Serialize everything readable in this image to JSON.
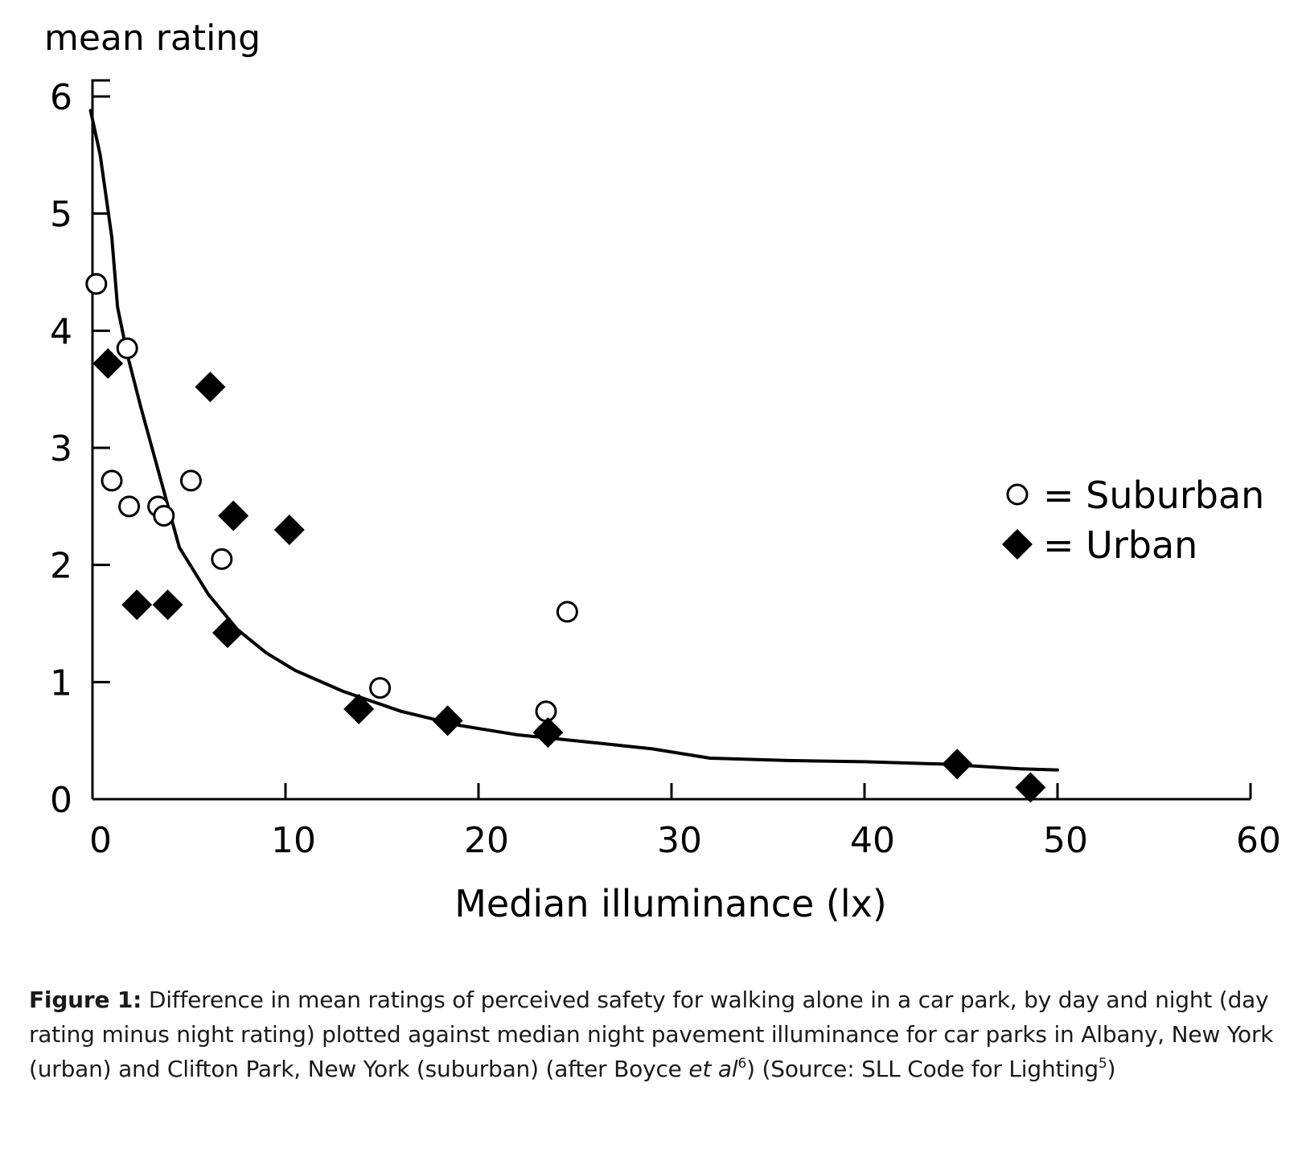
{
  "chart_data": {
    "type": "scatter",
    "ylabel": "mean rating",
    "xlabel": "Median illuminance (lx)",
    "xlim": [
      0,
      60
    ],
    "ylim": [
      0,
      6
    ],
    "xticks": [
      "0",
      "10",
      "20",
      "30",
      "40",
      "50",
      "60"
    ],
    "yticks": [
      "0",
      "1",
      "2",
      "3",
      "4",
      "5",
      "6"
    ],
    "grid": false,
    "legend_position": "right",
    "series": [
      {
        "name": "Suburban",
        "legend_label": "= Suburban",
        "marker": "open-circle",
        "points": [
          [
            0.2,
            4.4
          ],
          [
            1.8,
            3.85
          ],
          [
            1.0,
            2.72
          ],
          [
            1.9,
            2.5
          ],
          [
            3.4,
            2.5
          ],
          [
            3.7,
            2.42
          ],
          [
            5.1,
            2.72
          ],
          [
            6.7,
            2.05
          ],
          [
            24.6,
            1.6
          ],
          [
            14.9,
            0.95
          ],
          [
            23.5,
            0.75
          ]
        ]
      },
      {
        "name": "Urban",
        "legend_label": "= Urban",
        "marker": "filled-diamond",
        "points": [
          [
            0.8,
            3.72
          ],
          [
            6.1,
            3.52
          ],
          [
            7.3,
            2.42
          ],
          [
            10.2,
            2.3
          ],
          [
            2.3,
            1.66
          ],
          [
            3.9,
            1.66
          ],
          [
            7.0,
            1.42
          ],
          [
            13.8,
            0.77
          ],
          [
            18.4,
            0.67
          ],
          [
            23.6,
            0.57
          ],
          [
            44.8,
            0.3
          ],
          [
            48.6,
            0.1
          ]
        ]
      }
    ],
    "trend_curve": [
      [
        -0.1,
        5.88
      ],
      [
        0.4,
        5.5
      ],
      [
        1.0,
        4.8
      ],
      [
        1.3,
        4.2
      ],
      [
        1.8,
        3.8
      ],
      [
        2.5,
        3.35
      ],
      [
        3.5,
        2.75
      ],
      [
        4.5,
        2.15
      ],
      [
        6.0,
        1.75
      ],
      [
        7.5,
        1.45
      ],
      [
        9.0,
        1.25
      ],
      [
        10.5,
        1.1
      ],
      [
        13.0,
        0.92
      ],
      [
        16.0,
        0.75
      ],
      [
        19.0,
        0.63
      ],
      [
        22.0,
        0.55
      ],
      [
        25.0,
        0.5
      ],
      [
        29.0,
        0.43
      ],
      [
        32.0,
        0.35
      ],
      [
        36.0,
        0.33
      ],
      [
        40.0,
        0.32
      ],
      [
        44.0,
        0.3
      ],
      [
        48.0,
        0.26
      ],
      [
        50.0,
        0.25
      ]
    ]
  },
  "caption": {
    "label": "Figure 1:",
    "part1": " Difference in mean ratings of perceived safety for walking alone in a car park, by day and night (day rating minus night rating) plotted against median night pavement illuminance for car parks in Albany, New York (urban) and Clifton Park, New York (suburban) (after Boyce ",
    "et_al": "et al",
    "ref1": "6",
    "part2": ") (Source: SLL Code for Lighting",
    "ref2": "5",
    "part3": ")"
  },
  "colors": {
    "ink": "#000000",
    "caption_text": "#1a1a1a",
    "background": "#ffffff"
  }
}
